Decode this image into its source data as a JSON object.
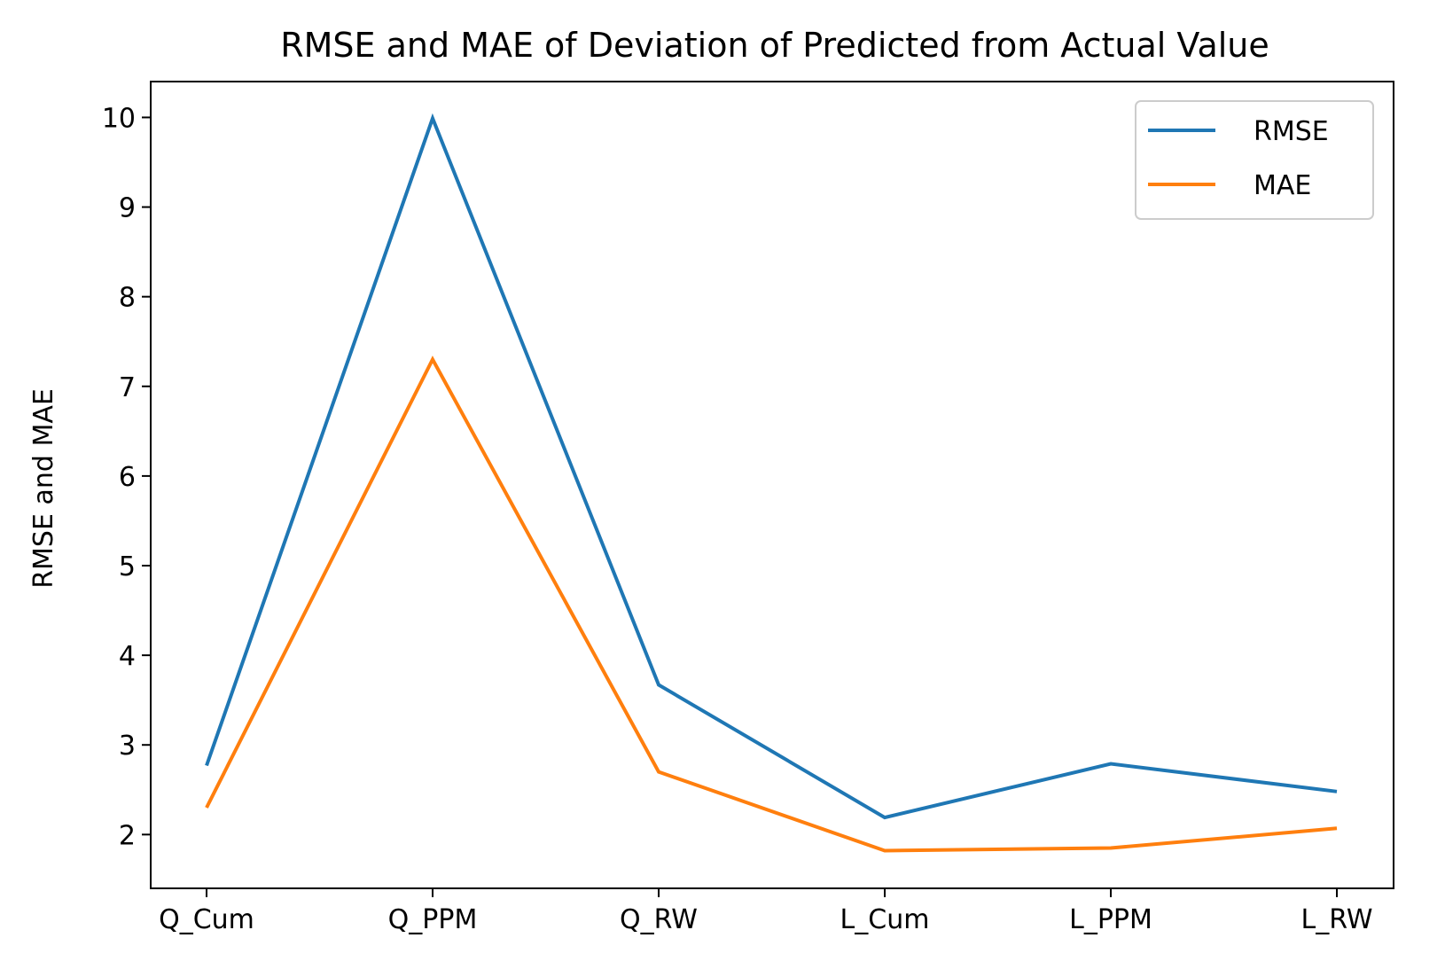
{
  "chart_data": {
    "type": "line",
    "title": "RMSE and MAE of Deviation of Predicted from Actual Value",
    "xlabel": "",
    "ylabel": "RMSE and MAE",
    "categories": [
      "Q_Cum",
      "Q_PPM",
      "Q_RW",
      "L_Cum",
      "L_PPM",
      "L_RW"
    ],
    "y_ticks": [
      "2",
      "3",
      "4",
      "5",
      "6",
      "7",
      "8",
      "9",
      "10"
    ],
    "ylim": [
      1.4,
      10.4
    ],
    "grid": false,
    "legend_position": "top-right",
    "series": [
      {
        "name": "RMSE",
        "color": "#1f77b4",
        "values": [
          2.77,
          9.99,
          3.67,
          2.19,
          2.79,
          2.48
        ]
      },
      {
        "name": "MAE",
        "color": "#ff7f0e",
        "values": [
          2.3,
          7.3,
          2.7,
          1.82,
          1.85,
          2.07
        ]
      }
    ]
  }
}
